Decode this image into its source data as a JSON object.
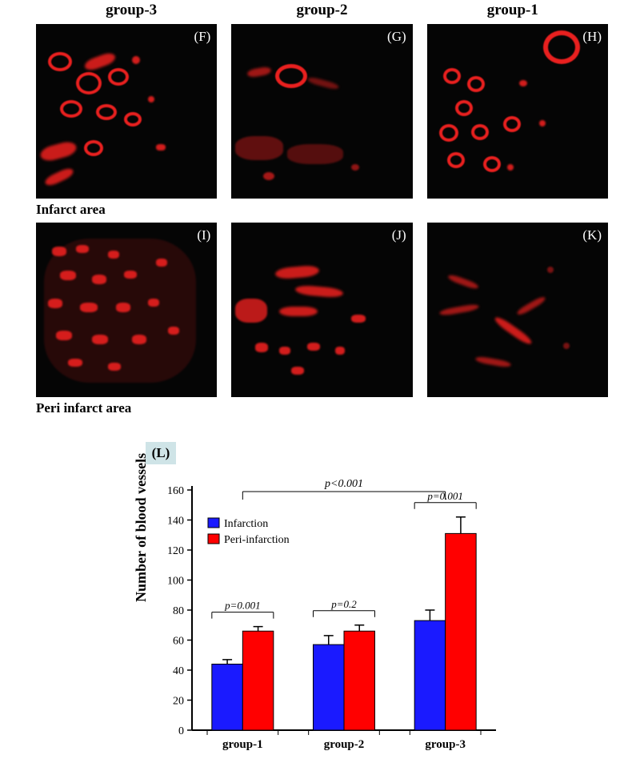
{
  "headers": {
    "g3": "group-3",
    "g2": "group-2",
    "g1": "group-1"
  },
  "rows": {
    "infarct_label": "Infarct area",
    "peri_label": "Peri infarct area",
    "panels_top": [
      "(F)",
      "(G)",
      "(H)"
    ],
    "panels_bot": [
      "(I)",
      "(J)",
      "(K)"
    ]
  },
  "chart": {
    "panel_tag": "(L)",
    "type": "bar",
    "ylabel": "Number of blood vessels",
    "ylim": [
      0,
      160
    ],
    "ytick_step": 20,
    "categories": [
      "group-1",
      "group-2",
      "group-3"
    ],
    "series": [
      {
        "name": "Infarction",
        "color": "#1a1aff",
        "values": [
          44,
          57,
          73
        ],
        "errors": [
          3,
          6,
          7
        ]
      },
      {
        "name": "Peri-infarction",
        "color": "#ff0000",
        "values": [
          66,
          66,
          131
        ],
        "errors": [
          3,
          4,
          11
        ]
      }
    ],
    "bar_width": 0.38,
    "pvalues": [
      {
        "label": "p=0.001",
        "over": "group-1"
      },
      {
        "label": "p=0.2",
        "over": "group-2"
      },
      {
        "label": "p=0.001",
        "over": "group-3"
      }
    ],
    "overall_p": "p<0.001",
    "axis_color": "#000000",
    "tick_fontsize": 14,
    "label_fontsize": 15,
    "legend_box_border": "#000000",
    "background_color": "#ffffff",
    "font_family": "Times New Roman"
  },
  "micrograph_colors": {
    "bg": "#050505",
    "signal": "#e9201f"
  }
}
